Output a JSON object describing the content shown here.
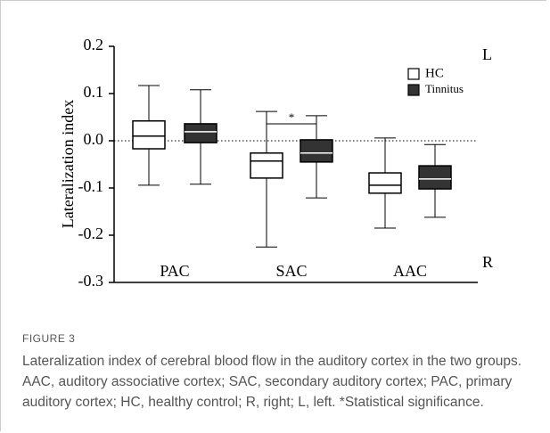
{
  "chart_data": {
    "type": "box",
    "ylabel": "Lateralization index",
    "categories": [
      "PAC",
      "SAC",
      "AAC"
    ],
    "series": [
      {
        "name": "HC",
        "color": "#ffffff",
        "boxes": [
          {
            "min": -0.094,
            "q1": -0.017,
            "median": 0.01,
            "q3": 0.042,
            "max": 0.117
          },
          {
            "min": -0.225,
            "q1": -0.079,
            "median": -0.043,
            "q3": -0.026,
            "max": 0.062
          },
          {
            "min": -0.185,
            "q1": -0.111,
            "median": -0.094,
            "q3": -0.068,
            "max": 0.006
          }
        ]
      },
      {
        "name": "Tinnitus",
        "color": "#333333",
        "boxes": [
          {
            "min": -0.092,
            "q1": -0.004,
            "median": 0.019,
            "q3": 0.036,
            "max": 0.108
          },
          {
            "min": -0.121,
            "q1": -0.045,
            "median": -0.026,
            "q3": 0.002,
            "max": 0.053
          },
          {
            "min": -0.162,
            "q1": -0.102,
            "median": -0.081,
            "q3": -0.053,
            "max": -0.008
          }
        ]
      }
    ],
    "ylim": [
      -0.3,
      0.2
    ],
    "yticks": [
      0.2,
      0.1,
      {
        "value": 0,
        "label": "0.0"
      },
      -0.1,
      -0.2,
      -0.3
    ],
    "reference_line": 0,
    "annotations": [
      "*",
      "L",
      "R"
    ],
    "legend": "upper right"
  },
  "caption": {
    "label": "FIGURE 3",
    "text": "Lateralization index of cerebral blood flow in the auditory cortex in the two groups. AAC, auditory associative cortex; SAC, secondary auditory cortex; PAC, primary auditory cortex; HC, healthy control; R, right; L, left. *Statistical significance."
  }
}
